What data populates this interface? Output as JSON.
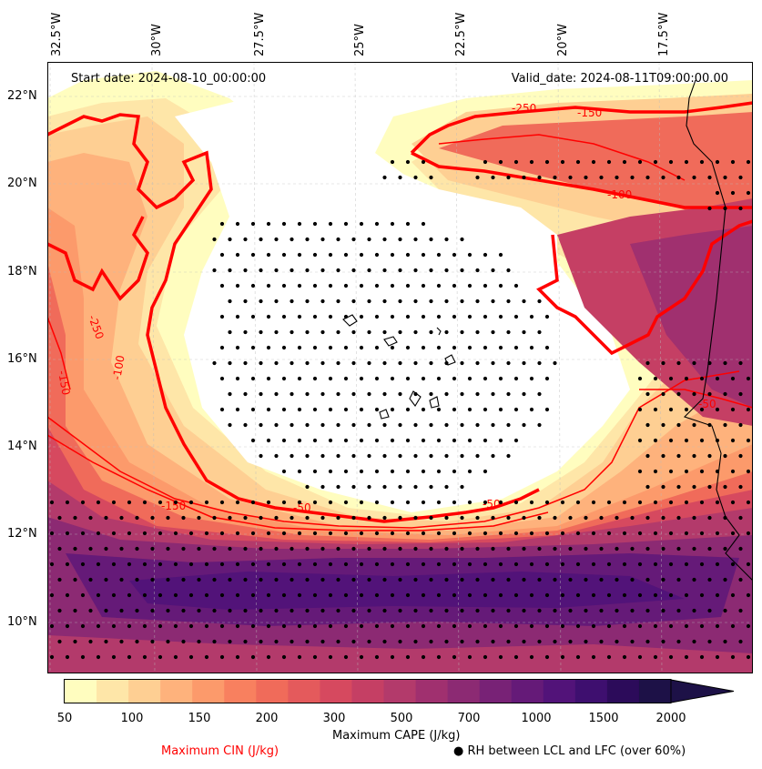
{
  "map": {
    "start_date": "Start date: 2024-08-10_00:00:00",
    "valid_date": "Valid_date: 2024-08-11T09:00:00.00",
    "lon_labels": [
      "32.5°W",
      "30°W",
      "27.5°W",
      "25°W",
      "22.5°W",
      "20°W",
      "17.5°W"
    ],
    "lat_labels": [
      "22°N",
      "20°N",
      "18°N",
      "16°N",
      "14°N",
      "12°N",
      "10°N"
    ],
    "cin_contour_labels": [
      "-250",
      "-150",
      "-250",
      "-100",
      "-150",
      "-100",
      "-150",
      "-50",
      "-50",
      "-50"
    ],
    "extent": {
      "lon_min": -33.0,
      "lon_max": -16.0,
      "lat_min": 9.0,
      "lat_max": 22.8
    }
  },
  "colorbar": {
    "label": "Maximum CAPE (J/kg)",
    "ticks": [
      "50",
      "100",
      "150",
      "200",
      "300",
      "500",
      "700",
      "1000",
      "1500",
      "2000"
    ],
    "levels": [
      50,
      75,
      100,
      125,
      150,
      175,
      200,
      250,
      300,
      400,
      500,
      600,
      700,
      850,
      1000,
      1250,
      1500,
      1750,
      2000
    ],
    "colors": [
      "#fffdbf",
      "#fee6a8",
      "#fecf93",
      "#feb27c",
      "#fc9a6b",
      "#f8805f",
      "#f06b5a",
      "#e45a5c",
      "#d6495f",
      "#c53f64",
      "#b33a6b",
      "#a0306f",
      "#8c2a73",
      "#782276",
      "#651a78",
      "#521379",
      "#3e0f6f",
      "#2c0b5a",
      "#1d1147"
    ]
  },
  "legend": {
    "cin_label": "Maximum CIN (J/kg)",
    "rh_label": "● RH between LCL and LFC (over 60%)",
    "cin_color": "#ff0000"
  }
}
